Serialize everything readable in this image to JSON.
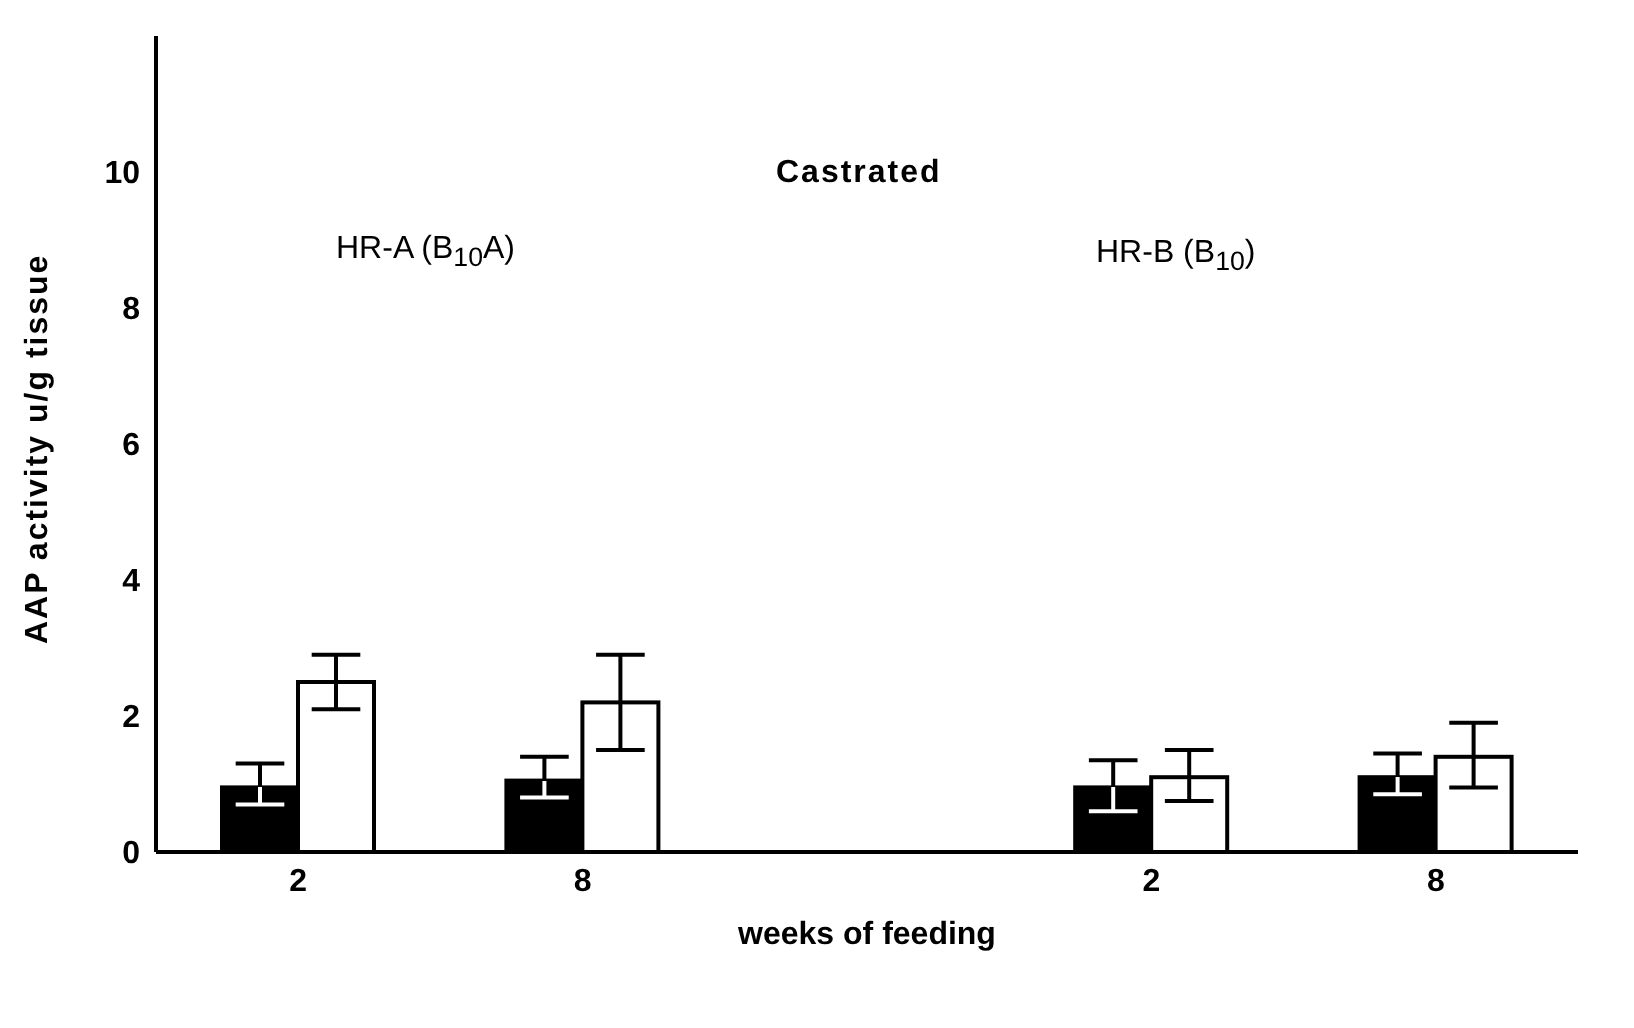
{
  "chart_data": {
    "type": "bar",
    "xlabel": "weeks of feeding",
    "ylabel": "AAP activity u/g tissue",
    "categories": [
      "2",
      "8",
      null,
      "2",
      "8"
    ],
    "series": [
      {
        "color": "#000000",
        "values": [
          0.95,
          1.05,
          null,
          0.95,
          1.1
        ],
        "errors": [
          [
            0.7,
            1.3
          ],
          [
            0.8,
            1.4
          ],
          null,
          [
            0.6,
            1.35
          ],
          [
            0.85,
            1.45
          ]
        ]
      },
      {
        "color": "#ffffff",
        "values": [
          2.5,
          2.2,
          null,
          1.1,
          1.4
        ],
        "errors": [
          [
            2.1,
            2.9
          ],
          [
            1.5,
            2.9
          ],
          null,
          [
            0.75,
            1.5
          ],
          [
            0.95,
            1.9
          ]
        ]
      }
    ],
    "ylim": [
      0,
      12
    ],
    "yticks": [
      0,
      2,
      4,
      6,
      8,
      10
    ],
    "grid": false,
    "legend": false,
    "annotations": [
      "Castrated",
      "HR-A (B$_{10}$A)",
      "HR-B (B$_{10}$)"
    ]
  }
}
